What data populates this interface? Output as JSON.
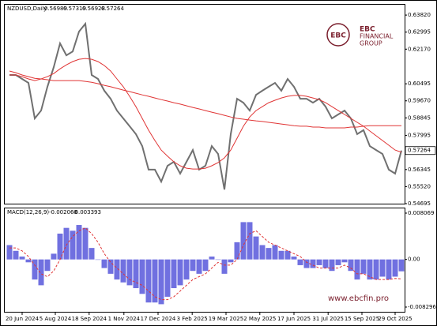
{
  "chart_data": [
    {
      "type": "line",
      "title": "NZDUSD,Daily",
      "header_values": [
        0.56989,
        0.57319,
        0.56928,
        0.57264
      ],
      "last_price": 0.57264,
      "xlim": [
        0,
        62
      ],
      "ylim": [
        0.54695,
        0.6432
      ],
      "yticks": [
        {
          "value": 0.6382,
          "label": "0.63820"
        },
        0.62995,
        {
          "value": 0.6217,
          "label": "0.62170"
        },
        0.60495,
        {
          "value": 0.5967,
          "label": "0.59670"
        },
        0.58845,
        0.57995,
        0.56345,
        {
          "value": 0.5552,
          "label": "0.55520"
        },
        0.54695
      ],
      "series": [
        {
          "type": "line",
          "color": "#707070",
          "width": 2,
          "values": [
            0.6092,
            0.6092,
            0.6073,
            0.6054,
            0.5882,
            0.592,
            0.6035,
            0.613,
            0.6245,
            0.6187,
            0.6206,
            0.6302,
            0.634,
            0.6092,
            0.6073,
            0.6016,
            0.5977,
            0.592,
            0.5882,
            0.5844,
            0.5806,
            0.5748,
            0.5634,
            0.5634,
            0.5576,
            0.5653,
            0.5672,
            0.5615,
            0.5672,
            0.5729,
            0.5634,
            0.5653,
            0.5748,
            0.571,
            0.5538,
            0.5806,
            0.5977,
            0.5958,
            0.592,
            0.5996,
            0.6016,
            0.6035,
            0.6054,
            0.6016,
            0.6073,
            0.6035,
            0.5977,
            0.5977,
            0.5958,
            0.5977,
            0.5939,
            0.5882,
            0.5901,
            0.592,
            0.5882,
            0.5806,
            0.5825,
            0.5748,
            0.5729,
            0.571,
            0.5634,
            0.5615,
            0.57264
          ]
        },
        {
          "type": "line",
          "color": "#e03535",
          "width": 1,
          "values": [
            0.6092,
            0.6092,
            0.6084,
            0.6073,
            0.6065,
            0.6073,
            0.6084,
            0.6099,
            0.6122,
            0.6141,
            0.6157,
            0.6168,
            0.6172,
            0.6168,
            0.6157,
            0.6138,
            0.6111,
            0.6073,
            0.6035,
            0.5989,
            0.5939,
            0.5882,
            0.5825,
            0.5775,
            0.5729,
            0.5699,
            0.5672,
            0.5653,
            0.5641,
            0.5637,
            0.5637,
            0.5641,
            0.5653,
            0.5668,
            0.5691,
            0.5729,
            0.5786,
            0.5844,
            0.5889,
            0.592,
            0.5939,
            0.5958,
            0.597,
            0.5981,
            0.5989,
            0.5993,
            0.5993,
            0.5989,
            0.5981,
            0.5973,
            0.5958,
            0.5939,
            0.592,
            0.5901,
            0.5882,
            0.5863,
            0.5844,
            0.5821,
            0.5798,
            0.5775,
            0.5752,
            0.5729,
            0.5718
          ]
        },
        {
          "type": "line",
          "color": "#e03535",
          "width": 1,
          "values": [
            0.6111,
            0.6103,
            0.6092,
            0.6084,
            0.6076,
            0.6073,
            0.6069,
            0.6065,
            0.6065,
            0.6065,
            0.6065,
            0.6065,
            0.6061,
            0.6057,
            0.605,
            0.6042,
            0.6035,
            0.6027,
            0.6019,
            0.6012,
            0.6004,
            0.5996,
            0.5989,
            0.5981,
            0.5973,
            0.5966,
            0.5958,
            0.5951,
            0.5943,
            0.5935,
            0.5928,
            0.592,
            0.5912,
            0.5905,
            0.5897,
            0.5889,
            0.5882,
            0.5878,
            0.5874,
            0.587,
            0.5867,
            0.5863,
            0.5859,
            0.5855,
            0.5851,
            0.5847,
            0.5844,
            0.5844,
            0.584,
            0.584,
            0.5836,
            0.5836,
            0.5836,
            0.5836,
            0.584,
            0.584,
            0.5844,
            0.5847,
            0.5847,
            0.5847,
            0.5847,
            0.5847,
            0.5847
          ]
        }
      ]
    },
    {
      "type": "bar",
      "title": "MACD(12,26,9)",
      "header_values": [
        -0.002068,
        -0.003393
      ],
      "xlim": [
        0,
        62
      ],
      "ylim": [
        -0.009121,
        0.008894
      ],
      "yticks": [
        0.008069,
        {
          "value": 0,
          "label": "0.00"
        },
        -0.008296
      ],
      "xticks": [
        {
          "value": 2,
          "label": "20 Jun 2024"
        },
        {
          "value": 7.25,
          "label": "5 Aug 2024"
        },
        {
          "value": 12.6,
          "label": "18 Sep 2024"
        },
        {
          "value": 18.1,
          "label": "1 Nov 2024"
        },
        {
          "value": 23.5,
          "label": "17 Dec 2024"
        },
        {
          "value": 28.9,
          "label": "3 Feb 2025"
        },
        {
          "value": 34.25,
          "label": "19 Mar 2025"
        },
        {
          "value": 39.6,
          "label": "2 May 2025"
        },
        {
          "value": 45,
          "label": "17 Jun 2025"
        },
        {
          "value": 50.4,
          "label": "31 Jul 2025"
        },
        {
          "value": 55.75,
          "label": "15 Sep 2025"
        },
        {
          "value": 61,
          "label": "29 Oct 2025"
        }
      ],
      "series": [
        {
          "type": "bar",
          "color": "#7070e0",
          "values": [
            0.0025,
            0.0015,
            0.0005,
            -0.0005,
            -0.0035,
            -0.0045,
            -0.002,
            0.001,
            0.0045,
            0.0055,
            0.005,
            0.006,
            0.0055,
            0.002,
            0,
            -0.0015,
            -0.0025,
            -0.0035,
            -0.004,
            -0.0045,
            -0.005,
            -0.006,
            -0.0075,
            -0.0075,
            -0.0078,
            -0.0065,
            -0.005,
            -0.0045,
            -0.0035,
            -0.002,
            -0.0025,
            -0.002,
            0.0005,
            0,
            -0.0025,
            -0.0005,
            0.003,
            0.0065,
            0.0065,
            0.004,
            0.0025,
            0.002,
            0.0025,
            0.0015,
            0.0015,
            0.0005,
            -0.001,
            -0.0015,
            -0.0015,
            -0.001,
            -0.0015,
            -0.002,
            -0.001,
            -0.0005,
            -0.002,
            -0.0035,
            -0.0025,
            -0.0035,
            -0.0035,
            -0.003,
            -0.0035,
            -0.003,
            -0.002068
          ]
        },
        {
          "type": "line",
          "color": "#e03535",
          "width": 1,
          "dashed": true,
          "values": [
            0.002,
            0.002,
            0.0015,
            0.0005,
            -0.001,
            -0.0025,
            -0.003,
            -0.002,
            0,
            0.0025,
            0.004,
            0.005,
            0.0055,
            0.0045,
            0.003,
            0.001,
            -0.0005,
            -0.0015,
            -0.0025,
            -0.0035,
            -0.004,
            -0.0045,
            -0.0055,
            -0.0065,
            -0.007,
            -0.007,
            -0.0065,
            -0.0055,
            -0.0045,
            -0.0035,
            -0.003,
            -0.0025,
            -0.0015,
            -0.0005,
            -0.001,
            -0.001,
            0,
            0.0025,
            0.0045,
            0.005,
            0.004,
            0.003,
            0.0025,
            0.002,
            0.0015,
            0.001,
            0.0005,
            -0.0005,
            -0.001,
            -0.0015,
            -0.0015,
            -0.0015,
            -0.0015,
            -0.001,
            -0.0015,
            -0.0025,
            -0.0025,
            -0.003,
            -0.0035,
            -0.0035,
            -0.0035,
            -0.0033,
            -0.003393
          ]
        }
      ]
    }
  ],
  "logo": {
    "mark": "EBC",
    "line1": "FINANCIAL",
    "line2": "GROUP"
  },
  "watermark": "www.ebcfin.pro"
}
